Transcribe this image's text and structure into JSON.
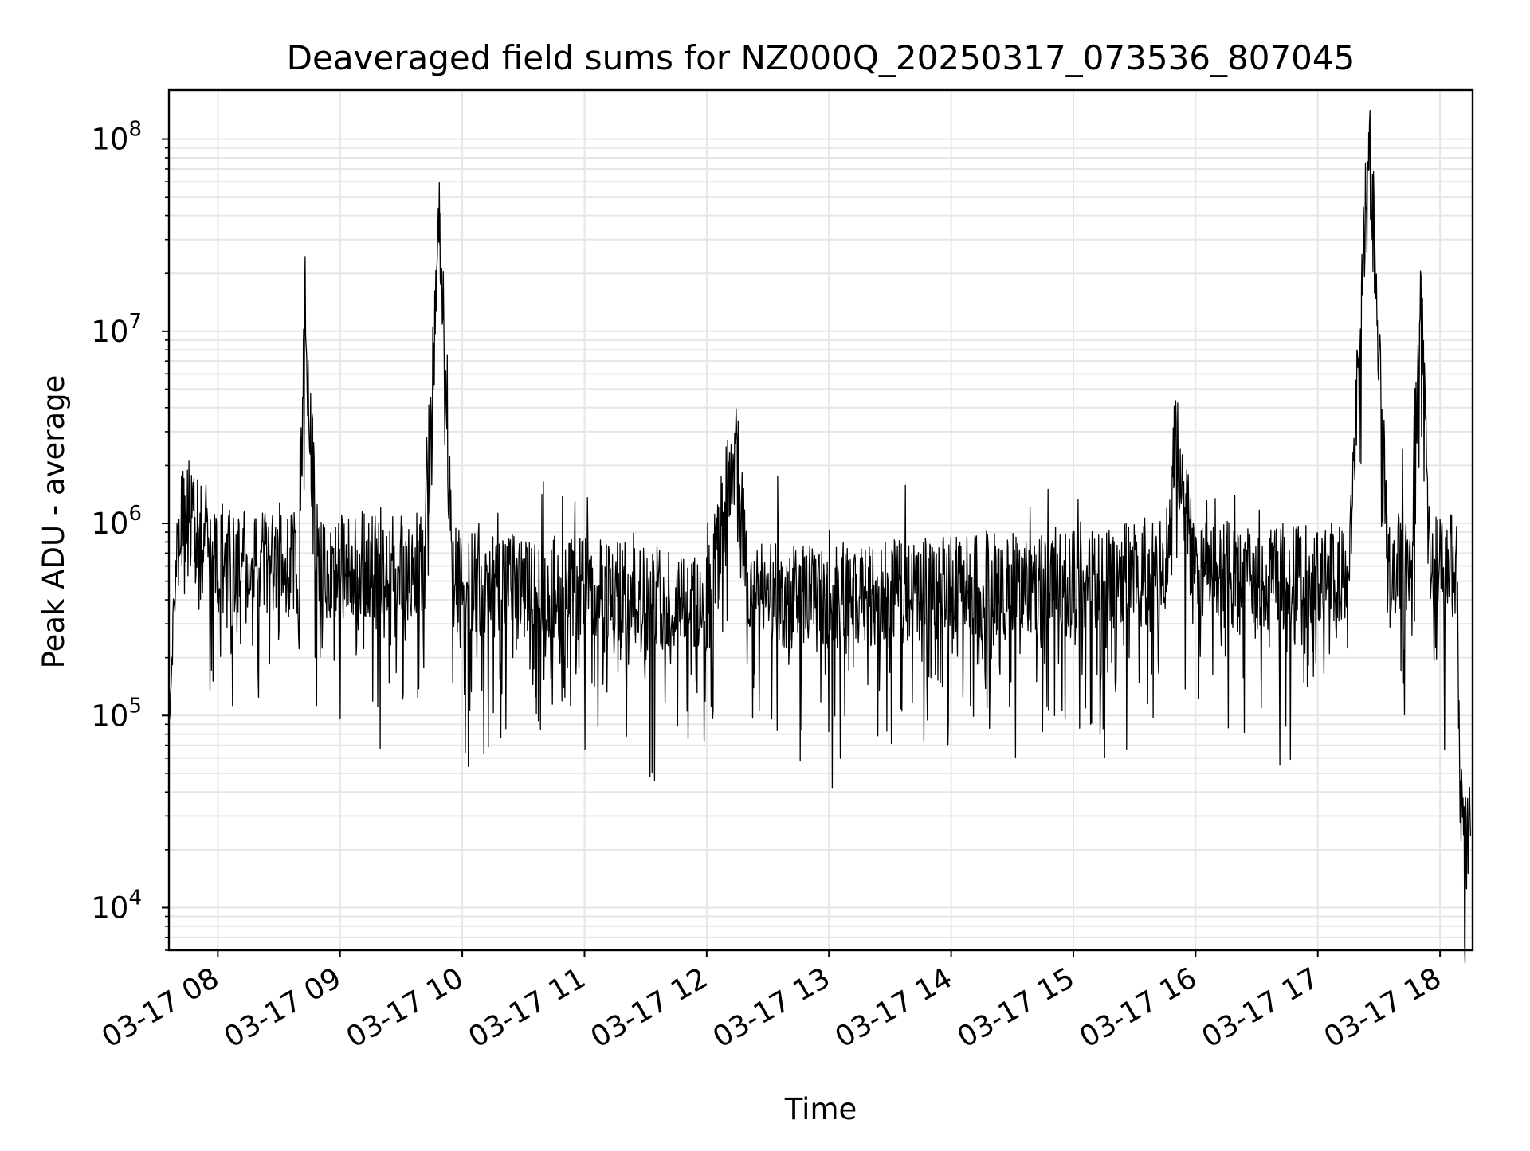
{
  "chart_data": {
    "type": "line",
    "title": "Deaveraged field sums for NZ000Q_20250317_073536_807045",
    "xlabel": "Time",
    "ylabel": "Peak ADU - average",
    "yscale": "log",
    "ylim": [
      6000,
      180000000
    ],
    "xlim": [
      "03-17 07:36",
      "03-17 18:16"
    ],
    "grid": true,
    "legend": "none",
    "line_color": "#000000",
    "grid_color": "#e6e6e6",
    "x_tick_labels": [
      "03-17 08",
      "03-17 09",
      "03-17 10",
      "03-17 11",
      "03-17 12",
      "03-17 13",
      "03-17 14",
      "03-17 15",
      "03-17 16",
      "03-17 17",
      "03-17 18"
    ],
    "x_tick_hours": [
      8,
      9,
      10,
      11,
      12,
      13,
      14,
      15,
      16,
      17,
      18
    ],
    "y_ticks": [
      {
        "value": 10000,
        "base": "10",
        "exp": "4"
      },
      {
        "value": 100000,
        "base": "10",
        "exp": "5"
      },
      {
        "value": 1000000,
        "base": "10",
        "exp": "6"
      },
      {
        "value": 10000000,
        "base": "10",
        "exp": "7"
      },
      {
        "value": 100000000,
        "base": "10",
        "exp": "8"
      }
    ],
    "series": [
      {
        "x": [
          "07:36",
          "07:40",
          "07:45",
          "07:50",
          "07:55",
          "08:00",
          "08:10",
          "08:20",
          "08:30",
          "08:40",
          "08:42",
          "08:50",
          "09:00",
          "09:10",
          "09:20",
          "09:30",
          "09:40",
          "09:45",
          "09:49",
          "09:55",
          "10:00",
          "10:15",
          "10:30",
          "10:45",
          "11:00",
          "11:15",
          "11:30",
          "11:45",
          "12:00",
          "12:15",
          "12:20",
          "12:30",
          "12:45",
          "13:00",
          "13:15",
          "13:30",
          "13:45",
          "14:00",
          "14:15",
          "14:30",
          "14:45",
          "15:00",
          "15:15",
          "15:30",
          "15:45",
          "15:50",
          "16:00",
          "16:15",
          "16:30",
          "16:45",
          "17:00",
          "17:15",
          "17:25",
          "17:35",
          "17:45",
          "17:51",
          "17:55",
          "18:00",
          "18:05",
          "18:08",
          "18:10",
          "18:12",
          "18:15"
        ],
        "y": [
          90000,
          800000,
          1200000,
          900000,
          800000,
          700000,
          650000,
          600000,
          620000,
          600000,
          9000000,
          580000,
          600000,
          620000,
          600000,
          580000,
          600000,
          4500000,
          41000000,
          520000,
          500000,
          480000,
          470000,
          460000,
          450000,
          430000,
          420000,
          410000,
          400000,
          2700000,
          440000,
          420000,
          410000,
          420000,
          430000,
          440000,
          450000,
          460000,
          480000,
          500000,
          510000,
          520000,
          530000,
          540000,
          550000,
          2900000,
          560000,
          540000,
          520000,
          530000,
          540000,
          560000,
          108000000,
          600000,
          620000,
          16500000,
          600000,
          580000,
          600000,
          650000,
          40000,
          20000,
          25000
        ]
      }
    ]
  }
}
